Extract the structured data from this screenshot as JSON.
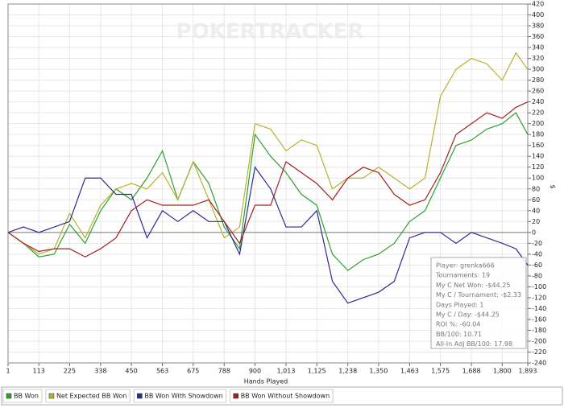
{
  "chart_data": {
    "type": "line",
    "watermark": "POKERTRACKER",
    "x_label": "Hands Played",
    "y_label": "$",
    "x": [
      1,
      57,
      113,
      169,
      225,
      282,
      338,
      394,
      450,
      507,
      563,
      619,
      675,
      732,
      788,
      844,
      900,
      957,
      1013,
      1069,
      1125,
      1182,
      1238,
      1294,
      1350,
      1407,
      1463,
      1519,
      1575,
      1632,
      1688,
      1744,
      1800,
      1850,
      1893
    ],
    "series": [
      {
        "name": "BB Won",
        "color": "#2ca02c",
        "values": [
          0,
          -20,
          -45,
          -40,
          15,
          -20,
          40,
          80,
          60,
          100,
          150,
          60,
          130,
          90,
          10,
          -30,
          180,
          140,
          110,
          70,
          50,
          -40,
          -70,
          -50,
          -40,
          -20,
          20,
          40,
          100,
          160,
          170,
          190,
          200,
          220,
          180
        ]
      },
      {
        "name": "Net Expected BB Won",
        "color": "#b8b030",
        "values": [
          0,
          -20,
          -40,
          -30,
          35,
          -10,
          50,
          80,
          90,
          80,
          110,
          60,
          130,
          60,
          -10,
          10,
          200,
          190,
          150,
          170,
          160,
          80,
          100,
          100,
          120,
          100,
          80,
          100,
          250,
          300,
          320,
          310,
          280,
          330,
          300
        ]
      },
      {
        "name": "BB Won With Showdown",
        "color": "#2a2a9a",
        "values": [
          0,
          10,
          0,
          10,
          20,
          100,
          100,
          70,
          70,
          -10,
          40,
          20,
          40,
          20,
          20,
          -40,
          120,
          80,
          10,
          10,
          40,
          -90,
          -130,
          -120,
          -110,
          -90,
          -10,
          0,
          0,
          -20,
          0,
          -10,
          -20,
          -30,
          -60
        ]
      },
      {
        "name": "BB Won Without Showdown",
        "color": "#a02020",
        "values": [
          0,
          -20,
          -35,
          -30,
          -30,
          -45,
          -30,
          -10,
          40,
          60,
          50,
          50,
          50,
          60,
          20,
          -20,
          50,
          50,
          130,
          110,
          90,
          60,
          100,
          120,
          110,
          70,
          50,
          60,
          110,
          180,
          200,
          220,
          210,
          230,
          240
        ]
      }
    ],
    "xlim": [
      1,
      1893
    ],
    "xticks": [
      1,
      113,
      225,
      338,
      450,
      563,
      675,
      788,
      900,
      {
        "value": 1013,
        "label": "1,013"
      },
      {
        "value": 1125,
        "label": "1,125"
      },
      {
        "value": 1238,
        "label": "1,238"
      },
      {
        "value": 1350,
        "label": "1,350"
      },
      {
        "value": 1463,
        "label": "1,463"
      },
      {
        "value": 1575,
        "label": "1,575"
      },
      {
        "value": 1688,
        "label": "1,688"
      },
      {
        "value": 1800,
        "label": "1,800"
      },
      {
        "value": 1893,
        "label": "1,893"
      }
    ],
    "ylim": [
      -240,
      420
    ],
    "yticks": [
      420,
      400,
      380,
      360,
      340,
      320,
      300,
      280,
      260,
      240,
      220,
      200,
      180,
      160,
      140,
      120,
      100,
      80,
      60,
      40,
      20,
      0,
      -20,
      -40,
      -60,
      -80,
      -100,
      -120,
      -140,
      -160,
      -180,
      -200,
      -220,
      -240
    ],
    "grid": true,
    "tooltip": [
      "Player: grenka666",
      "Tournaments: 19",
      "My C Net Won: -$44.25",
      "My C / Tournament: -$2.33",
      "Days Played: 1",
      "My C / Day: -$44.25",
      "ROI %: -60.04",
      "BB/100: 10.71",
      "All-In Adj BB/100: 17.98"
    ]
  }
}
